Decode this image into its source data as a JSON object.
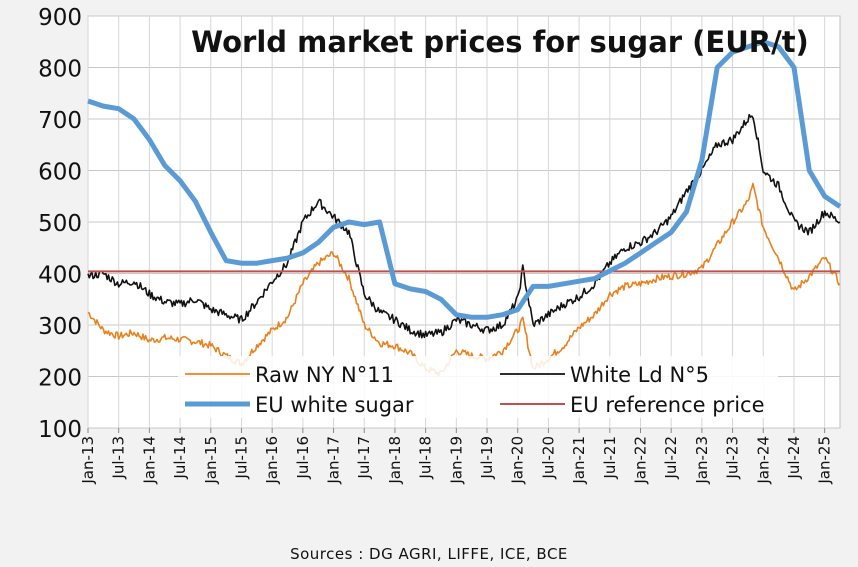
{
  "chart_data": {
    "type": "line",
    "title": "World market prices for sugar (EUR/t)",
    "source": "Sources : DG AGRI, LIFFE, ICE, BCE",
    "xlabel": "",
    "ylabel": "",
    "ylim": [
      100,
      900
    ],
    "yticks": [
      100,
      200,
      300,
      400,
      500,
      600,
      700,
      800,
      900
    ],
    "xlim": [
      "2013-01",
      "2025-04"
    ],
    "xticks": [
      "Jan-13",
      "Jul-13",
      "Jan-14",
      "Jul-14",
      "Jan-15",
      "Jul-15",
      "Jan-16",
      "Jul-16",
      "Jan-17",
      "Jul-17",
      "Jan-18",
      "Jul-18",
      "Jan-19",
      "Jul-19",
      "Jan-20",
      "Jul-20",
      "Jan-21",
      "Jul-21",
      "Jan-22",
      "Jul-22",
      "Jan-23",
      "Jul-23",
      "Jan-24",
      "Jul-24",
      "Jan-25"
    ],
    "grid": true,
    "legend": "bottom",
    "colors": {
      "raw": "#e8821e",
      "white": "#111111",
      "eu_white": "#5b9bd5",
      "ref": "#c0504d"
    },
    "series": [
      {
        "name": "Raw NY N°11",
        "x": [
          "2013-01",
          "2013-04",
          "2013-07",
          "2013-10",
          "2014-01",
          "2014-04",
          "2014-07",
          "2014-10",
          "2015-01",
          "2015-04",
          "2015-07",
          "2015-10",
          "2016-01",
          "2016-04",
          "2016-07",
          "2016-10",
          "2017-01",
          "2017-04",
          "2017-07",
          "2017-10",
          "2018-01",
          "2018-04",
          "2018-07",
          "2018-10",
          "2019-01",
          "2019-04",
          "2019-07",
          "2019-10",
          "2020-01",
          "2020-02",
          "2020-04",
          "2020-07",
          "2020-10",
          "2021-01",
          "2021-04",
          "2021-07",
          "2021-10",
          "2022-01",
          "2022-04",
          "2022-07",
          "2022-10",
          "2023-01",
          "2023-04",
          "2023-07",
          "2023-10",
          "2023-11",
          "2024-01",
          "2024-04",
          "2024-07",
          "2024-10",
          "2025-01",
          "2025-04"
        ],
        "values": [
          325,
          290,
          278,
          285,
          270,
          275,
          272,
          268,
          260,
          240,
          225,
          260,
          290,
          315,
          380,
          420,
          440,
          390,
          300,
          265,
          260,
          245,
          215,
          205,
          250,
          240,
          235,
          250,
          290,
          310,
          215,
          235,
          260,
          295,
          320,
          360,
          375,
          380,
          390,
          395,
          400,
          410,
          455,
          500,
          540,
          570,
          490,
          430,
          365,
          395,
          430,
          380
        ]
      },
      {
        "name": "White Ld N°5",
        "x": [
          "2013-01",
          "2013-04",
          "2013-07",
          "2013-10",
          "2014-01",
          "2014-04",
          "2014-07",
          "2014-10",
          "2015-01",
          "2015-04",
          "2015-07",
          "2015-10",
          "2016-01",
          "2016-04",
          "2016-07",
          "2016-10",
          "2017-01",
          "2017-04",
          "2017-07",
          "2017-10",
          "2018-01",
          "2018-04",
          "2018-07",
          "2018-10",
          "2019-01",
          "2019-04",
          "2019-07",
          "2019-10",
          "2020-01",
          "2020-02",
          "2020-04",
          "2020-07",
          "2020-10",
          "2021-01",
          "2021-04",
          "2021-07",
          "2021-10",
          "2022-01",
          "2022-04",
          "2022-07",
          "2022-10",
          "2023-01",
          "2023-04",
          "2023-07",
          "2023-10",
          "2023-11",
          "2024-01",
          "2024-04",
          "2024-07",
          "2024-10",
          "2025-01",
          "2025-04"
        ],
        "values": [
          395,
          400,
          380,
          385,
          360,
          345,
          340,
          350,
          330,
          320,
          310,
          345,
          385,
          420,
          500,
          540,
          510,
          480,
          360,
          325,
          310,
          290,
          280,
          285,
          310,
          300,
          290,
          300,
          350,
          410,
          300,
          320,
          340,
          355,
          380,
          420,
          450,
          460,
          480,
          510,
          560,
          600,
          650,
          660,
          700,
          710,
          600,
          570,
          500,
          480,
          520,
          500
        ]
      },
      {
        "name": "EU white sugar",
        "x": [
          "2013-01",
          "2013-04",
          "2013-07",
          "2013-10",
          "2014-01",
          "2014-04",
          "2014-07",
          "2014-10",
          "2015-01",
          "2015-04",
          "2015-07",
          "2015-10",
          "2016-01",
          "2016-04",
          "2016-07",
          "2016-10",
          "2017-01",
          "2017-04",
          "2017-07",
          "2017-10",
          "2018-01",
          "2018-04",
          "2018-07",
          "2018-10",
          "2019-01",
          "2019-04",
          "2019-07",
          "2019-10",
          "2020-01",
          "2020-04",
          "2020-07",
          "2020-10",
          "2021-01",
          "2021-04",
          "2021-07",
          "2021-10",
          "2022-01",
          "2022-04",
          "2022-07",
          "2022-10",
          "2023-01",
          "2023-04",
          "2023-07",
          "2023-10",
          "2024-01",
          "2024-04",
          "2024-07",
          "2024-10",
          "2025-01",
          "2025-04"
        ],
        "values": [
          735,
          725,
          720,
          700,
          660,
          610,
          580,
          540,
          480,
          425,
          420,
          420,
          425,
          430,
          440,
          460,
          490,
          500,
          495,
          500,
          380,
          370,
          365,
          350,
          320,
          315,
          315,
          320,
          330,
          375,
          375,
          380,
          385,
          390,
          405,
          420,
          440,
          460,
          480,
          520,
          620,
          800,
          830,
          840,
          850,
          840,
          800,
          600,
          550,
          530
        ]
      },
      {
        "name": "EU reference price",
        "x": [
          "2013-01",
          "2025-04"
        ],
        "values": [
          404,
          404
        ]
      }
    ]
  }
}
